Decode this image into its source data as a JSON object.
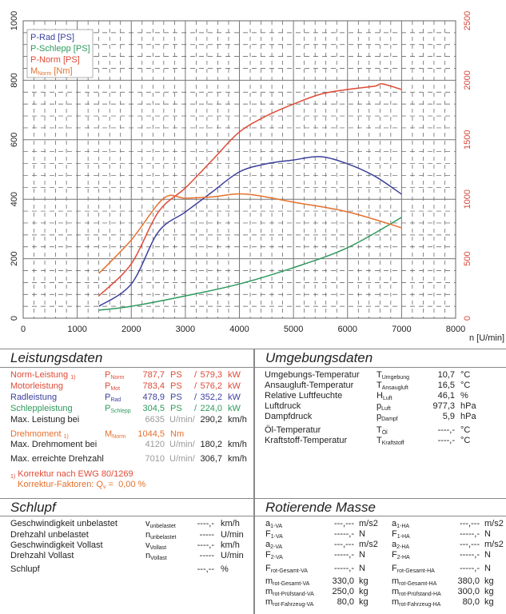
{
  "chart_data": {
    "type": "line",
    "title": "",
    "xlabel": "n [U/min]",
    "ylabel_left": "PS",
    "ylabel_right": "Nm",
    "xlim": [
      0,
      8000
    ],
    "ylim_left": [
      0,
      1000
    ],
    "ylim_right": [
      0,
      2500
    ],
    "x_ticks": [
      "0",
      "1000",
      "2000",
      "3000",
      "4000",
      "5000",
      "6000",
      "7000",
      "8000"
    ],
    "y_ticks_left": [
      "0",
      "200",
      "400",
      "600",
      "800",
      "1000"
    ],
    "y_ticks_right": [
      "0",
      "500",
      "1000",
      "1500",
      "2000",
      "2500"
    ],
    "grid": true,
    "legend_position": "top-left",
    "series": [
      {
        "name": "P-Rad [PS]",
        "axis": "left",
        "color": "#3b3f9c",
        "x": [
          1400,
          2000,
          2500,
          3000,
          3500,
          4000,
          4500,
          5000,
          5500,
          6000,
          6500,
          7000
        ],
        "y": [
          40,
          115,
          290,
          357,
          425,
          492,
          519,
          532,
          543,
          519,
          478,
          417
        ]
      },
      {
        "name": "P-Schlepp [PS]",
        "axis": "left",
        "color": "#2e9a5c",
        "x": [
          1400,
          2000,
          3000,
          4000,
          5000,
          6000,
          7000
        ],
        "y": [
          27,
          40,
          75,
          115,
          170,
          237,
          339
        ]
      },
      {
        "name": "P-Norm [PS]",
        "axis": "left",
        "color": "#e04a36",
        "x": [
          1400,
          2000,
          2500,
          3000,
          3500,
          4000,
          4500,
          5000,
          5500,
          6000,
          6500,
          6635,
          7000
        ],
        "y": [
          75,
          183,
          357,
          438,
          532,
          626,
          680,
          720,
          753,
          769,
          780,
          788,
          769
        ]
      },
      {
        "name": "M_Norm [Nm]",
        "axis": "right",
        "color": "#e6702c",
        "x": [
          1400,
          2000,
          2600,
          3000,
          3500,
          4120,
          5000,
          6000,
          7000
        ],
        "y": [
          376,
          658,
          1008,
          1008,
          1020,
          1044,
          975,
          894,
          760
        ]
      }
    ],
    "legend": [
      {
        "label": "P-Rad [PS]",
        "color": "#3b3f9c"
      },
      {
        "label": "P-Schlepp [PS]",
        "color": "#2e9a5c"
      },
      {
        "label": "P-Norm [PS]",
        "color": "#e04a36"
      },
      {
        "label_main": "M",
        "label_sub": "Norm",
        "label_tail": " [Nm]",
        "color": "#e6702c"
      }
    ]
  },
  "leistungsdaten": {
    "title": "Leistungsdaten",
    "rows": [
      {
        "label": "Norm-Leistung",
        "note": "1)",
        "sym": "P",
        "sub": "Norm",
        "ps": "787,7",
        "ps_unit": "PS",
        "sep": "/",
        "kw": "579,3",
        "kw_unit": "kW",
        "color": "norm"
      },
      {
        "label": "Motorleistung",
        "sym": "P",
        "sub": "Mot",
        "ps": "783,4",
        "ps_unit": "PS",
        "sep": "/",
        "kw": "576,2",
        "kw_unit": "kW",
        "color": "mot"
      },
      {
        "label": "Radleistung",
        "sym": "P",
        "sub": "Rad",
        "ps": "478,9",
        "ps_unit": "PS",
        "sep": "/",
        "kw": "352,2",
        "kw_unit": "kW",
        "color": "rad"
      },
      {
        "label": "Schleppleistung",
        "sym": "P",
        "sub": "Schlepp",
        "ps": "304,5",
        "ps_unit": "PS",
        "sep": "/",
        "kw": "224,0",
        "kw_unit": "kW",
        "color": "schlepp"
      }
    ],
    "max_leistung": {
      "label": "Max. Leistung bei",
      "rpm": "6635",
      "rpm_unit": "U/min/",
      "speed": "290,2",
      "speed_unit": "km/h"
    },
    "drehmoment": {
      "label": "Drehmoment",
      "note": "1)",
      "sym": "M",
      "sub": "Norm",
      "value": "1044,5",
      "unit": "Nm"
    },
    "max_drehmoment": {
      "label": "Max. Drehmoment bei",
      "rpm": "4120",
      "rpm_unit": "U/min/",
      "speed": "180,2",
      "speed_unit": "km/h"
    },
    "max_drehzahl": {
      "label": "Max. erreichte Drehzahl",
      "rpm": "7010",
      "rpm_unit": "U/min/",
      "speed": "306,7",
      "speed_unit": "km/h"
    },
    "korrektur": {
      "note": "1)",
      "line1": "Korrektur nach EWG 80/1269",
      "line2_label": "Korrektur-Faktoren: Q",
      "line2_sub": "v",
      "line2_eq": " = ",
      "line2_value": "0,00 %"
    }
  },
  "umgebungsdaten": {
    "title": "Umgebungsdaten",
    "rows": [
      {
        "label": "Umgebungs-Temperatur",
        "sym": "T",
        "sub": "Umgebung",
        "value": "10,7",
        "unit": "°C"
      },
      {
        "label": "Ansaugluft-Temperatur",
        "sym": "T",
        "sub": "Ansaugluft",
        "value": "16,5",
        "unit": "°C"
      },
      {
        "label": "Relative Luftfeuchte",
        "sym": "H",
        "sub": "Luft",
        "value": "46,1",
        "unit": "%"
      },
      {
        "label": "Luftdruck",
        "sym": "p",
        "sub": "Luft",
        "value": "977,3",
        "unit": "hPa"
      },
      {
        "label": "Dampfdruck",
        "sym": "p",
        "sub": "Dampf",
        "value": "5,9",
        "unit": "hPa"
      },
      {
        "label": "Öl-Temperatur",
        "sym": "T",
        "sub": "Öl",
        "value": "----,-",
        "unit": "°C"
      },
      {
        "label": "Kraftstoff-Temperatur",
        "sym": "T",
        "sub": "Kraftstoff",
        "value": "----,-",
        "unit": "°C"
      }
    ]
  },
  "schlupf": {
    "title": "Schlupf",
    "rows": [
      {
        "label": "Geschwindigkeit unbelastet",
        "sym": "v",
        "sub": "unbelastet",
        "value": "----,-",
        "unit": "km/h"
      },
      {
        "label": "Drehzahl unbelastet",
        "sym": "n",
        "sub": "unbelastet",
        "value": "-----",
        "unit": "U/min"
      },
      {
        "label": "Geschwindigkeit Vollast",
        "sym": "v",
        "sub": "Vollast",
        "value": "----,-",
        "unit": "km/h"
      },
      {
        "label": "Drehzahl Vollast",
        "sym": "n",
        "sub": "Vollast",
        "value": "-----",
        "unit": "U/min"
      },
      {
        "label": "Schlupf",
        "sym": "",
        "sub": "",
        "value": "---,--",
        "unit": "%"
      }
    ]
  },
  "rotierende_masse": {
    "title": "Rotierende Masse",
    "rows": [
      {
        "l_sym": "a",
        "l_sub": "1-VA",
        "l_val": "---,---",
        "l_unit": "m/s2",
        "r_sym": "a",
        "r_sub": "1-HA",
        "r_val": "---,---",
        "r_unit": "m/s2"
      },
      {
        "l_sym": "F",
        "l_sub": "1-VA",
        "l_val": "-----,-",
        "l_unit": "N",
        "r_sym": "F",
        "r_sub": "1-HA",
        "r_val": "-----,-",
        "r_unit": "N"
      },
      {
        "l_sym": "a",
        "l_sub": "2-VA",
        "l_val": "---,---",
        "l_unit": "m/s2",
        "r_sym": "a",
        "r_sub": "2-HA",
        "r_val": "---,---",
        "r_unit": "m/s2"
      },
      {
        "l_sym": "F",
        "l_sub": "2-VA",
        "l_val": "-----,-",
        "l_unit": "N",
        "r_sym": "F",
        "r_sub": "2-HA",
        "r_val": "-----,-",
        "r_unit": "N"
      },
      {
        "l_sym": "F",
        "l_sub": "rot-Gesamt-VA",
        "l_val": "-----,-",
        "l_unit": "N",
        "r_sym": "F",
        "r_sub": "rot-Gesamt-HA",
        "r_val": "-----,-",
        "r_unit": "N"
      },
      {
        "l_sym": "m",
        "l_sub": "rot-Gesamt-VA",
        "l_val": "330,0",
        "l_unit": "kg",
        "r_sym": "m",
        "r_sub": "rot-Gesamt-HA",
        "r_val": "380,0",
        "r_unit": "kg"
      },
      {
        "l_sym": "m",
        "l_sub": "rot-Prüfstand-VA",
        "l_val": "250,0",
        "l_unit": "kg",
        "r_sym": "m",
        "r_sub": "rot-Prüfstand-HA",
        "r_val": "300,0",
        "r_unit": "kg"
      },
      {
        "l_sym": "m",
        "l_sub": "rot-Fahrzeug-VA",
        "l_val": "80,0",
        "l_unit": "kg",
        "r_sym": "m",
        "r_sub": "rot-Fahrzeug-HA",
        "r_val": "80,0",
        "r_unit": "kg"
      }
    ]
  }
}
